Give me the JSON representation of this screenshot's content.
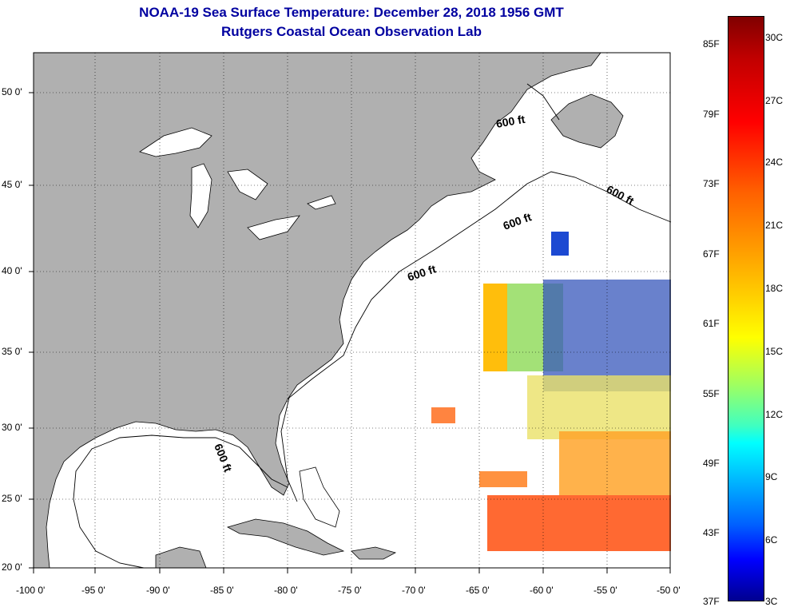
{
  "title": {
    "line1": "NOAA-19 Sea Surface Temperature:  December 28, 2018 1956 GMT",
    "line2": "Rutgers Coastal Ocean Observation Lab"
  },
  "map": {
    "lat_labels": [
      "50 0'",
      "45 0'",
      "40 0'",
      "35 0'",
      "30 0'",
      "25 0'",
      "20 0'"
    ],
    "lon_labels": [
      "-100 0'",
      "-95 0'",
      "-90 0'",
      "-85 0'",
      "-80 0'",
      "-75 0'",
      "-70 0'",
      "-65 0'",
      "-60 0'",
      "-55 0'",
      "-50 0'"
    ],
    "contour_label": "600 ft",
    "land_color": "#b0b0b0",
    "ocean_color": "#ffffff"
  },
  "colorbar": {
    "fahrenheit_labels": [
      "85F",
      "79F",
      "73F",
      "67F",
      "61F",
      "55F",
      "49F",
      "43F",
      "37F"
    ],
    "celsius_labels": [
      "30C",
      "27C",
      "24C",
      "21C",
      "18C",
      "15C",
      "12C",
      "9C",
      "6C",
      "3C"
    ],
    "range_c": [
      3,
      30
    ],
    "range_f": [
      37,
      85
    ]
  }
}
